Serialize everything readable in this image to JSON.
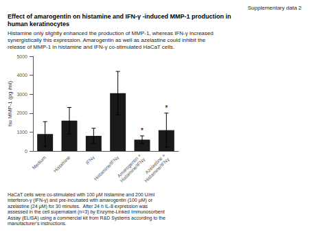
{
  "chart_data": {
    "type": "bar",
    "title": "Effect of amarogentin on histamine and IFN-γ -induced MMP-1 production in\nhuman keratinocytes",
    "subtitle": "Histamine only slightly enhanced the production of MMP-1, whereas IFN-γ increased\nsynergistically this expression. Amarogentin as well as azelastine could inhibit the\nrelease of MMP-1 in histamine and IFN-γ co-stimulated HaCaT cells.",
    "annotations": [
      {
        "text": "Supplementary data 2"
      },
      {
        "text": "HaCaT cells were co-stimulated with 100 μM histamine and 200 U/ml\ninterferon-γ (IFN-γ) and pre-incubated with amarogentin (100 μM) or\nazelastine (24 μM) for 30 minutes.  After 24 h IL-8 expression was\nassessed in the cell supernatant (n=3) by Enzyme-Linked Immunosorbent\nAssay (ELISA) using a commercial kit from R&D Systems according to the\nmanufacturer’s instructions."
      },
      {
        "text": "*",
        "category": "Amarogentin +\nHistamine/IFNγ"
      },
      {
        "text": "*",
        "category": "Azelastine +\nHistamine/IFNγ"
      }
    ],
    "categories": [
      "Medium",
      "Histamine",
      "IFNγ",
      "Histamine/IFNγ",
      "Amarogentin +\nHistamine/IFNγ",
      "Azelastine +\nHistamine/IFNγ"
    ],
    "values": [
      900,
      1600,
      800,
      3050,
      600,
      1100
    ],
    "errors": [
      650,
      700,
      400,
      1150,
      200,
      900
    ],
    "color": "#1a1a1a",
    "ylabel": "hu MMP-1 (pg /ml)",
    "ylim": [
      0,
      5000
    ],
    "yticks": [
      0,
      1000,
      2000,
      3000,
      4000,
      5000
    ],
    "grid": false
  }
}
